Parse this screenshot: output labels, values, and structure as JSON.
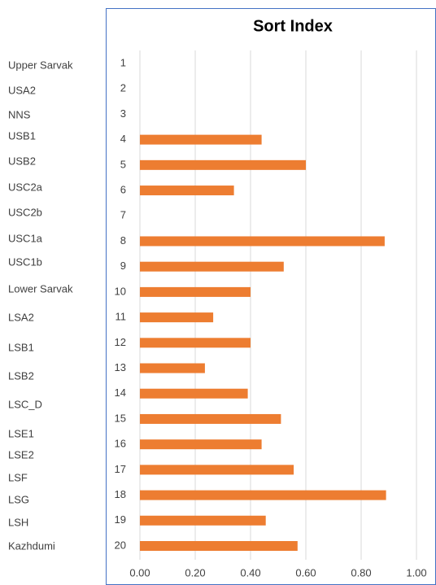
{
  "zones": [
    "Upper Sarvak",
    "USA2",
    "NNS",
    "USB1",
    "USB2",
    "USC2a",
    "USC2b",
    "USC1a",
    "USC1b",
    "Lower Sarvak",
    "LSA2",
    "LSB1",
    "LSB2",
    "LSC_D",
    "LSE1",
    "LSE2",
    "LSF",
    "LSG",
    "LSH",
    "Kazhdumi"
  ],
  "chart_data": {
    "type": "hbar",
    "title": "Sort Index",
    "categories": [
      "1",
      "2",
      "3",
      "4",
      "5",
      "6",
      "7",
      "8",
      "9",
      "10",
      "11",
      "12",
      "13",
      "14",
      "15",
      "16",
      "17",
      "18",
      "19",
      "20"
    ],
    "values": [
      0,
      0,
      0,
      0.44,
      0.6,
      0.34,
      0,
      0.885,
      0.52,
      0.4,
      0.265,
      0.4,
      0.235,
      0.39,
      0.51,
      0.44,
      0.556,
      0.89,
      0.455,
      0.57
    ],
    "color": "#ed7d31",
    "xlim": [
      0,
      1
    ],
    "xticks": [
      {
        "value": 0,
        "label": "0.00"
      },
      {
        "value": 0.2,
        "label": "0.20"
      },
      {
        "value": 0.4,
        "label": "0.40"
      },
      {
        "value": 0.6,
        "label": "0.60"
      },
      {
        "value": 0.8,
        "label": "0.80"
      },
      {
        "value": 1,
        "label": "1.00"
      }
    ],
    "grid": true
  }
}
